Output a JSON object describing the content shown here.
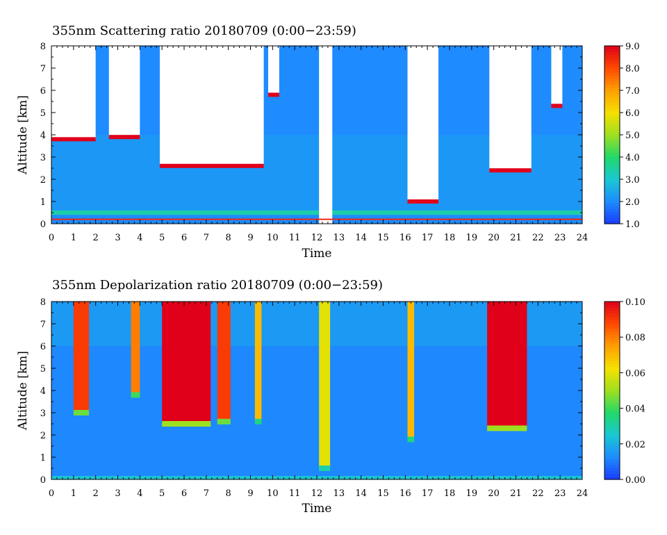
{
  "chart_data": [
    {
      "type": "heatmap",
      "title": "355nm Scattering ratio  20180709 (0:00−23:59)",
      "xlabel": "Time",
      "ylabel": "Altitude [km]",
      "xlim": [
        0,
        24
      ],
      "ylim": [
        0,
        8
      ],
      "x_ticks": [
        "0",
        "1",
        "2",
        "3",
        "4",
        "5",
        "6",
        "7",
        "8",
        "9",
        "10",
        "11",
        "12",
        "13",
        "14",
        "15",
        "16",
        "17",
        "18",
        "19",
        "20",
        "21",
        "22",
        "23",
        "24"
      ],
      "y_ticks": [
        "0",
        "1",
        "2",
        "3",
        "4",
        "5",
        "6",
        "7",
        "8"
      ],
      "colorbar": {
        "range": [
          1.0,
          9.0
        ],
        "ticks": [
          "1.0",
          "2.0",
          "3.0",
          "4.0",
          "5.0",
          "6.0",
          "7.0",
          "8.0",
          "9.0"
        ]
      },
      "background_value": 2.0,
      "boundary_layer": {
        "top_km": 0.6,
        "value": 3.4
      },
      "cloud_layers": [
        {
          "t_start": 0.0,
          "t_end": 2.0,
          "base_km": 3.8,
          "value": 9.0
        },
        {
          "t_start": 2.6,
          "t_end": 4.0,
          "base_km": 3.9,
          "value": 9.0
        },
        {
          "t_start": 4.9,
          "t_end": 9.6,
          "base_km": 2.6,
          "value": 9.0
        },
        {
          "t_start": 9.8,
          "t_end": 10.3,
          "base_km": 5.8,
          "value": 9.0
        },
        {
          "t_start": 16.1,
          "t_end": 17.5,
          "base_km": 1.0,
          "value": 9.0
        },
        {
          "t_start": 19.8,
          "t_end": 21.7,
          "base_km": 2.4,
          "value": 9.0
        },
        {
          "t_start": 22.6,
          "t_end": 23.1,
          "base_km": 5.3,
          "value": 9.0
        }
      ],
      "no_data_gaps": [
        {
          "t_start": 12.1,
          "t_end": 12.7
        }
      ],
      "colors": [
        "#1a3cff",
        "#1e8bff",
        "#19c8d4",
        "#22d86a",
        "#9de020",
        "#f5e100",
        "#ffa000",
        "#ff4a00",
        "#e0001a"
      ]
    },
    {
      "type": "heatmap",
      "title": "355nm Depolarization ratio  20180709 (0:00−23:59)",
      "xlabel": "Time",
      "ylabel": "Altitude [km]",
      "xlim": [
        0,
        24
      ],
      "ylim": [
        0,
        8
      ],
      "x_ticks": [
        "0",
        "1",
        "2",
        "3",
        "4",
        "5",
        "6",
        "7",
        "8",
        "9",
        "10",
        "11",
        "12",
        "13",
        "14",
        "15",
        "16",
        "17",
        "18",
        "19",
        "20",
        "21",
        "22",
        "23",
        "24"
      ],
      "y_ticks": [
        "0",
        "1",
        "2",
        "3",
        "4",
        "5",
        "6",
        "7",
        "8"
      ],
      "colorbar": {
        "range": [
          0.0,
          0.1
        ],
        "ticks": [
          "0.00",
          "0.02",
          "0.04",
          "0.06",
          "0.08",
          "0.10"
        ]
      },
      "background_value": 0.012,
      "high_depol_columns": [
        {
          "t_start": 1.0,
          "t_end": 1.7,
          "base_km": 3.0,
          "value": 0.09
        },
        {
          "t_start": 3.6,
          "t_end": 4.0,
          "base_km": 3.8,
          "value": 0.08
        },
        {
          "t_start": 5.0,
          "t_end": 7.2,
          "base_km": 2.5,
          "value": 0.1
        },
        {
          "t_start": 7.5,
          "t_end": 8.1,
          "base_km": 2.6,
          "value": 0.09
        },
        {
          "t_start": 9.2,
          "t_end": 9.5,
          "base_km": 2.6,
          "value": 0.07
        },
        {
          "t_start": 12.1,
          "t_end": 12.6,
          "base_km": 0.5,
          "value": 0.06
        },
        {
          "t_start": 16.1,
          "t_end": 16.4,
          "base_km": 1.8,
          "value": 0.07
        },
        {
          "t_start": 19.7,
          "t_end": 21.5,
          "base_km": 2.3,
          "value": 0.1
        }
      ],
      "colors": [
        "#1a3cff",
        "#1e8bff",
        "#19c8d4",
        "#22d86a",
        "#9de020",
        "#f5e100",
        "#ffa000",
        "#ff4a00",
        "#e0001a"
      ]
    }
  ]
}
